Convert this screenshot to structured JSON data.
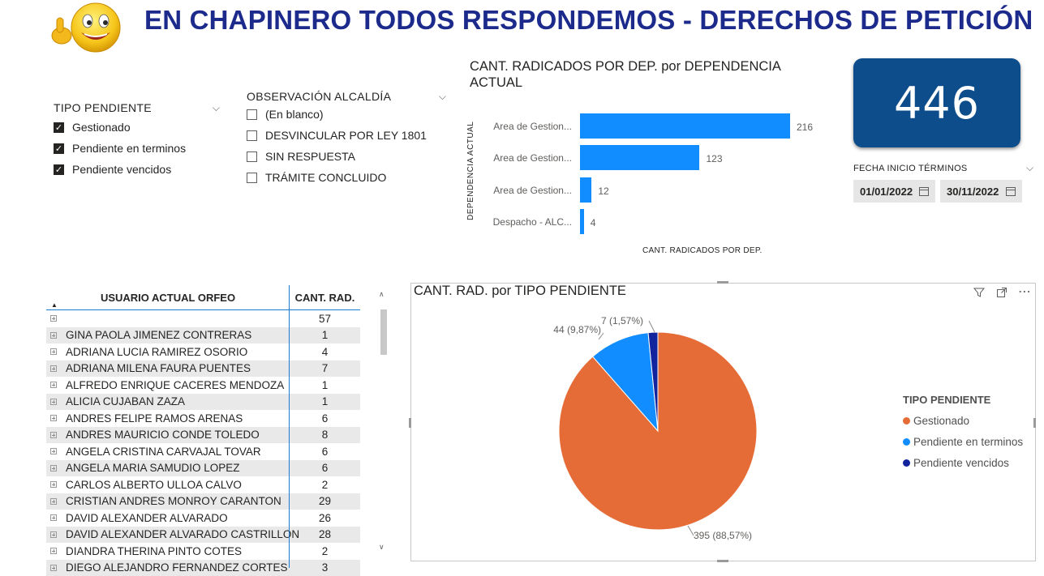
{
  "header": {
    "title": "EN CHAPINERO TODOS RESPONDEMOS  - DERECHOS DE PETICIÓN",
    "logo_icon": "winking-smiley-thumbs-up-icon"
  },
  "slicer_tipo": {
    "title": "TIPO PENDIENTE",
    "options": [
      {
        "label": "Gestionado",
        "checked": true
      },
      {
        "label": "Pendiente en terminos",
        "checked": true
      },
      {
        "label": "Pendiente vencidos",
        "checked": true
      }
    ]
  },
  "slicer_obs": {
    "title": "OBSERVACIÓN ALCALDÍA",
    "options": [
      {
        "label": "(En blanco)",
        "checked": false
      },
      {
        "label": "DESVINCULAR POR LEY 1801",
        "checked": false
      },
      {
        "label": "SIN RESPUESTA",
        "checked": false
      },
      {
        "label": "TRÁMITE CONCLUIDO",
        "checked": false
      }
    ]
  },
  "kpi": {
    "value": "446"
  },
  "date_slicer": {
    "label": "FECHA INICIO TÉRMINOS",
    "start": "01/01/2022",
    "end": "30/11/2022"
  },
  "bar_chart": {
    "title": "CANT. RADICADOS POR DEP. por DEPENDENCIA ACTUAL",
    "y_axis_label": "DEPENDENCIA ACTUAL",
    "x_axis_label": "CANT. RADICADOS POR DEP."
  },
  "table": {
    "col_user": "USUARIO ACTUAL ORFEO",
    "col_count": "CANT. RAD.",
    "rows": [
      {
        "name": "",
        "count": "57"
      },
      {
        "name": "GINA PAOLA JIMENEZ CONTRERAS",
        "count": "1"
      },
      {
        "name": "ADRIANA LUCIA RAMIREZ OSORIO",
        "count": "4"
      },
      {
        "name": "ADRIANA MILENA FAURA PUENTES",
        "count": "7"
      },
      {
        "name": "ALFREDO ENRIQUE CACERES MENDOZA",
        "count": "1"
      },
      {
        "name": "ALICIA CUJABAN ZAZA",
        "count": "1"
      },
      {
        "name": "ANDRES FELIPE RAMOS ARENAS",
        "count": "6"
      },
      {
        "name": "ANDRES MAURICIO CONDE TOLEDO",
        "count": "8"
      },
      {
        "name": "ANGELA CRISTINA CARVAJAL TOVAR",
        "count": "6"
      },
      {
        "name": "ANGELA MARIA SAMUDIO LOPEZ",
        "count": "6"
      },
      {
        "name": "CARLOS ALBERTO ULLOA CALVO",
        "count": "2"
      },
      {
        "name": "CRISTIAN ANDRES MONROY CARANTON",
        "count": "29"
      },
      {
        "name": "DAVID ALEXANDER ALVARADO",
        "count": "26"
      },
      {
        "name": "DAVID ALEXANDER ALVARADO CASTRILLON",
        "count": "28"
      },
      {
        "name": "DIANDRA THERINA PINTO COTES",
        "count": "2"
      },
      {
        "name": "DIEGO ALEJANDRO FERNANDEZ CORTES",
        "count": "3"
      }
    ]
  },
  "pie_visual": {
    "title": "CANT. RAD. por TIPO PENDIENTE",
    "legend_title": "TIPO PENDIENTE"
  },
  "chart_data": [
    {
      "type": "bar",
      "orientation": "horizontal",
      "title": "CANT. RADICADOS POR DEP. por DEPENDENCIA ACTUAL",
      "xlabel": "CANT. RADICADOS POR DEP.",
      "ylabel": "DEPENDENCIA ACTUAL",
      "categories": [
        "Area de Gestion...",
        "Area de Gestion...",
        "Area de Gestion...",
        "Despacho - ALC..."
      ],
      "values": [
        216,
        123,
        12,
        4
      ],
      "color": "#118dff"
    },
    {
      "type": "pie",
      "title": "CANT. RAD. por TIPO PENDIENTE",
      "legend_title": "TIPO PENDIENTE",
      "legend_position": "right",
      "slices": [
        {
          "label": "Gestionado",
          "value": 395,
          "data_label": "395 (88,57%)",
          "color": "#e66c37"
        },
        {
          "label": "Pendiente en terminos",
          "value": 44,
          "data_label": "44 (9,87%)",
          "color": "#118dff"
        },
        {
          "label": "Pendiente vencidos",
          "value": 7,
          "data_label": "7 (1,57%)",
          "color": "#12239e"
        }
      ]
    }
  ]
}
